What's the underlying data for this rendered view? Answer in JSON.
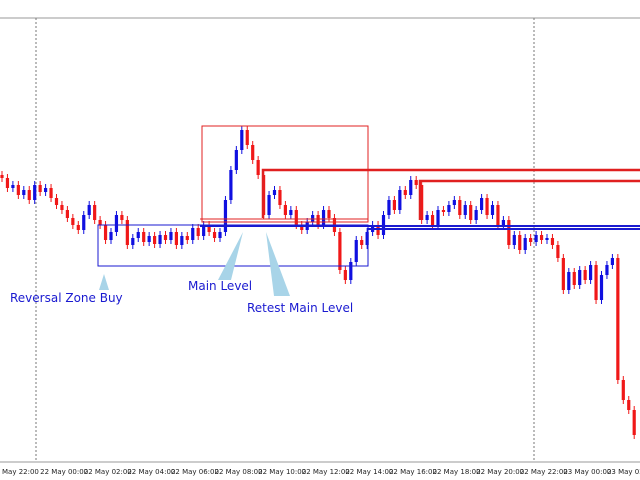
{
  "chart_data": {
    "type": "candlestick",
    "categories": [
      "May 22:00",
      null,
      null,
      null,
      null,
      null,
      null,
      "22 May 00:00",
      null,
      null,
      null,
      null,
      null,
      null,
      null,
      "22 May 02:00",
      null,
      null,
      null,
      null,
      null,
      null,
      null,
      "22 May 04:00",
      null,
      null,
      null,
      null,
      null,
      null,
      null,
      "22 May 06:00",
      null,
      null,
      null,
      null,
      null,
      null,
      null,
      "22 May 08:00",
      null,
      null,
      null,
      null,
      null,
      null,
      null,
      "22 May 10:00",
      null,
      null,
      null,
      null,
      null,
      null,
      null,
      "22 May 12:00",
      null,
      null,
      null,
      null,
      null,
      null,
      null,
      "22 May 14:00",
      null,
      null,
      null,
      null,
      null,
      null,
      null,
      "22 May 16:00",
      null,
      null,
      null,
      null,
      null,
      null,
      null,
      "22 May 18:00",
      null,
      null,
      null,
      null,
      null,
      null,
      null,
      "22 May 20:00",
      null,
      null,
      null,
      null,
      null,
      null,
      null,
      "22 May 22:00",
      null,
      null,
      null,
      null,
      null,
      null,
      null,
      "23 May 00:00",
      null,
      null,
      null,
      null,
      null,
      null,
      null,
      "23 May 02:00",
      null,
      null,
      null,
      null,
      null
    ],
    "open": [
      285,
      282,
      272,
      275,
      265,
      270,
      260,
      275,
      268,
      272,
      262,
      255,
      250,
      242,
      235,
      230,
      245,
      255,
      240,
      235,
      220,
      228,
      245,
      240,
      215,
      222,
      228,
      218,
      224,
      216,
      225,
      220,
      228,
      215,
      224,
      220,
      232,
      224,
      235,
      228,
      222,
      228,
      260,
      290,
      310,
      330,
      315,
      300,
      285,
      245,
      265,
      270,
      255,
      245,
      250,
      235,
      230,
      238,
      245,
      235,
      250,
      242,
      228,
      190,
      180,
      198,
      220,
      215,
      228,
      235,
      225,
      245,
      260,
      250,
      270,
      265,
      280,
      275,
      240,
      245,
      235,
      250,
      248,
      255,
      260,
      245,
      255,
      240,
      250,
      262,
      245,
      255,
      235,
      240,
      215,
      225,
      210,
      222,
      218,
      225,
      220,
      222,
      215,
      202,
      170,
      188,
      175,
      190,
      180,
      195,
      160,
      185,
      195,
      202,
      80,
      60,
      50
    ],
    "high": [
      289,
      286,
      279,
      279,
      274,
      274,
      279,
      279,
      276,
      276,
      266,
      259,
      254,
      246,
      239,
      249,
      259,
      259,
      244,
      239,
      232,
      249,
      249,
      244,
      226,
      232,
      232,
      228,
      228,
      229,
      229,
      232,
      232,
      228,
      228,
      236,
      236,
      239,
      239,
      232,
      232,
      264,
      294,
      314,
      334,
      334,
      319,
      304,
      289,
      269,
      274,
      274,
      259,
      254,
      254,
      239,
      242,
      249,
      249,
      254,
      254,
      246,
      232,
      194,
      202,
      224,
      224,
      232,
      239,
      239,
      249,
      264,
      264,
      274,
      274,
      284,
      284,
      279,
      249,
      249,
      254,
      254,
      259,
      264,
      264,
      259,
      259,
      254,
      266,
      266,
      259,
      259,
      244,
      244,
      229,
      229,
      226,
      226,
      229,
      229,
      226,
      226,
      219,
      206,
      192,
      192,
      194,
      194,
      199,
      199,
      189,
      199,
      206,
      206,
      84,
      64,
      54
    ],
    "low": [
      278,
      268,
      268,
      261,
      261,
      256,
      256,
      264,
      264,
      258,
      251,
      246,
      238,
      231,
      226,
      226,
      241,
      236,
      231,
      216,
      216,
      224,
      236,
      211,
      211,
      218,
      214,
      214,
      212,
      212,
      216,
      216,
      211,
      211,
      216,
      216,
      220,
      220,
      224,
      218,
      218,
      224,
      256,
      286,
      306,
      311,
      296,
      281,
      241,
      241,
      261,
      251,
      241,
      241,
      231,
      226,
      226,
      234,
      231,
      231,
      238,
      224,
      186,
      176,
      176,
      194,
      211,
      211,
      224,
      221,
      221,
      241,
      246,
      246,
      261,
      261,
      271,
      236,
      236,
      231,
      231,
      244,
      244,
      251,
      241,
      241,
      236,
      236,
      246,
      241,
      241,
      231,
      231,
      211,
      211,
      206,
      206,
      214,
      214,
      216,
      216,
      211,
      198,
      166,
      166,
      171,
      171,
      176,
      176,
      156,
      156,
      181,
      191,
      76,
      56,
      46,
      21
    ],
    "close": [
      282,
      272,
      275,
      265,
      270,
      260,
      275,
      268,
      272,
      262,
      255,
      250,
      242,
      235,
      230,
      245,
      255,
      240,
      235,
      220,
      228,
      245,
      240,
      215,
      222,
      228,
      218,
      224,
      216,
      225,
      220,
      228,
      215,
      224,
      220,
      232,
      224,
      235,
      228,
      222,
      228,
      260,
      290,
      310,
      330,
      315,
      300,
      285,
      245,
      265,
      270,
      255,
      245,
      250,
      235,
      230,
      238,
      245,
      235,
      250,
      242,
      228,
      190,
      180,
      198,
      220,
      215,
      228,
      235,
      225,
      245,
      260,
      250,
      270,
      265,
      280,
      275,
      240,
      245,
      235,
      250,
      248,
      255,
      260,
      245,
      255,
      240,
      250,
      262,
      245,
      255,
      235,
      240,
      215,
      225,
      210,
      222,
      218,
      225,
      220,
      222,
      215,
      202,
      170,
      188,
      175,
      190,
      180,
      195,
      160,
      185,
      195,
      202,
      80,
      60,
      50,
      25
    ],
    "up_color": "#1010e0",
    "down_color": "#f01818",
    "ylim": [
      0,
      460
    ],
    "annotations": [
      "Reversal Zone Buy",
      "Main Level",
      "Retest Main Level"
    ]
  }
}
